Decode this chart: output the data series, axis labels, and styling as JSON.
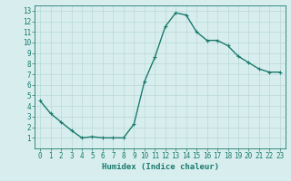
{
  "x": [
    0,
    1,
    2,
    3,
    4,
    5,
    6,
    7,
    8,
    9,
    10,
    11,
    12,
    13,
    14,
    15,
    16,
    17,
    18,
    19,
    20,
    21,
    22,
    23
  ],
  "y": [
    4.5,
    3.3,
    2.5,
    1.7,
    1.0,
    1.1,
    1.0,
    1.0,
    1.0,
    2.3,
    6.3,
    8.6,
    11.5,
    12.8,
    12.6,
    11.0,
    10.2,
    10.2,
    9.7,
    8.7,
    8.1,
    7.5,
    7.2,
    7.2
  ],
  "xlabel": "Humidex (Indice chaleur)",
  "xlim": [
    -0.5,
    23.5
  ],
  "ylim": [
    0,
    13.5
  ],
  "xticks": [
    0,
    1,
    2,
    3,
    4,
    5,
    6,
    7,
    8,
    9,
    10,
    11,
    12,
    13,
    14,
    15,
    16,
    17,
    18,
    19,
    20,
    21,
    22,
    23
  ],
  "yticks": [
    1,
    2,
    3,
    4,
    5,
    6,
    7,
    8,
    9,
    10,
    11,
    12,
    13
  ],
  "line_color": "#1a7a6e",
  "marker": "+",
  "bg_color": "#d8eeee",
  "grid_color": "#b8d8d8",
  "tick_color": "#1a7a6e",
  "label_color": "#1a7a6e",
  "tick_fontsize": 5.5,
  "xlabel_fontsize": 6.5,
  "linewidth": 1.0,
  "markersize": 3.5
}
